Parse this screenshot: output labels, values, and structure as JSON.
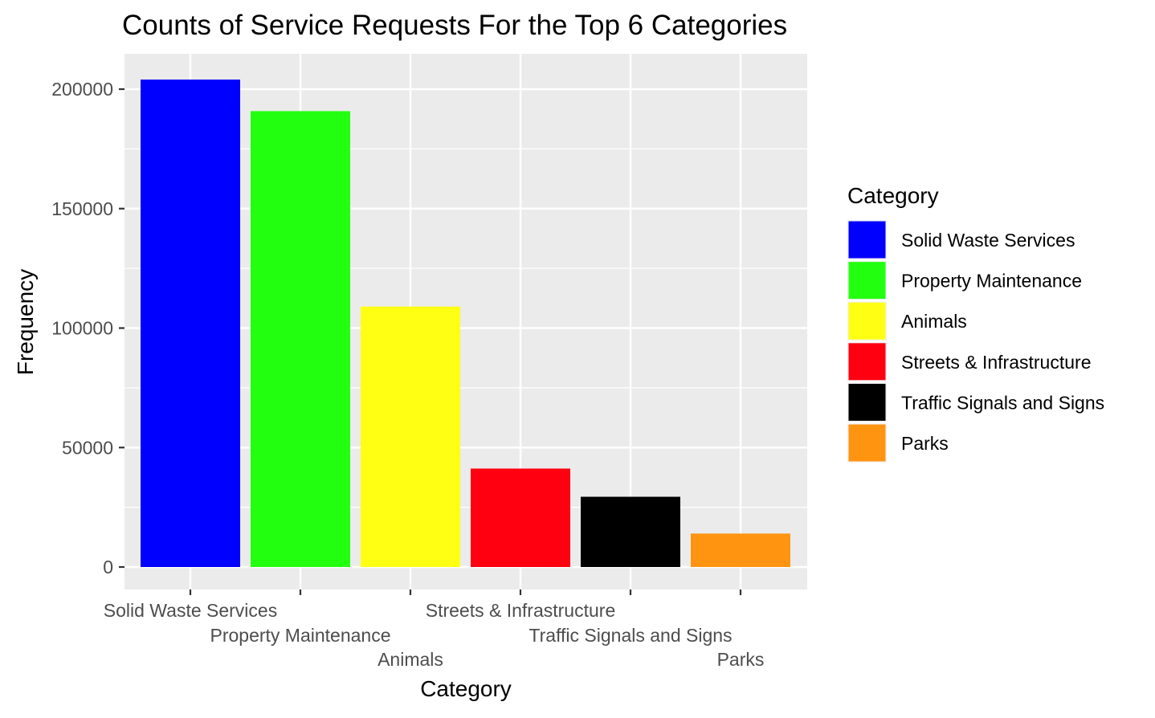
{
  "chart_data": {
    "type": "bar",
    "title": "Counts of Service Requests For the Top 6 Categories",
    "xlabel": "Category",
    "ylabel": "Frequency",
    "categories": [
      "Solid Waste Services",
      "Property Maintenance",
      "Animals",
      "Streets & Infrastructure",
      "Traffic Signals and Signs",
      "Parks"
    ],
    "values": [
      204000,
      190800,
      109000,
      41200,
      29400,
      14000
    ],
    "colors": [
      "#0000FF",
      "#22FF0F",
      "#FFFF14",
      "#FF0010",
      "#000000",
      "#FF9410"
    ],
    "ylim": [
      0,
      210000
    ],
    "yticks": [
      0,
      50000,
      100000,
      150000,
      200000
    ],
    "ytick_labels": [
      "0",
      "50000",
      "100000",
      "150000",
      "200000"
    ],
    "grid": true,
    "legend": {
      "title": "Category",
      "placement": "right",
      "entries": [
        "Solid Waste Services",
        "Property Maintenance",
        "Animals",
        "Streets & Infrastructure",
        "Traffic Signals and Signs",
        "Parks"
      ]
    }
  }
}
